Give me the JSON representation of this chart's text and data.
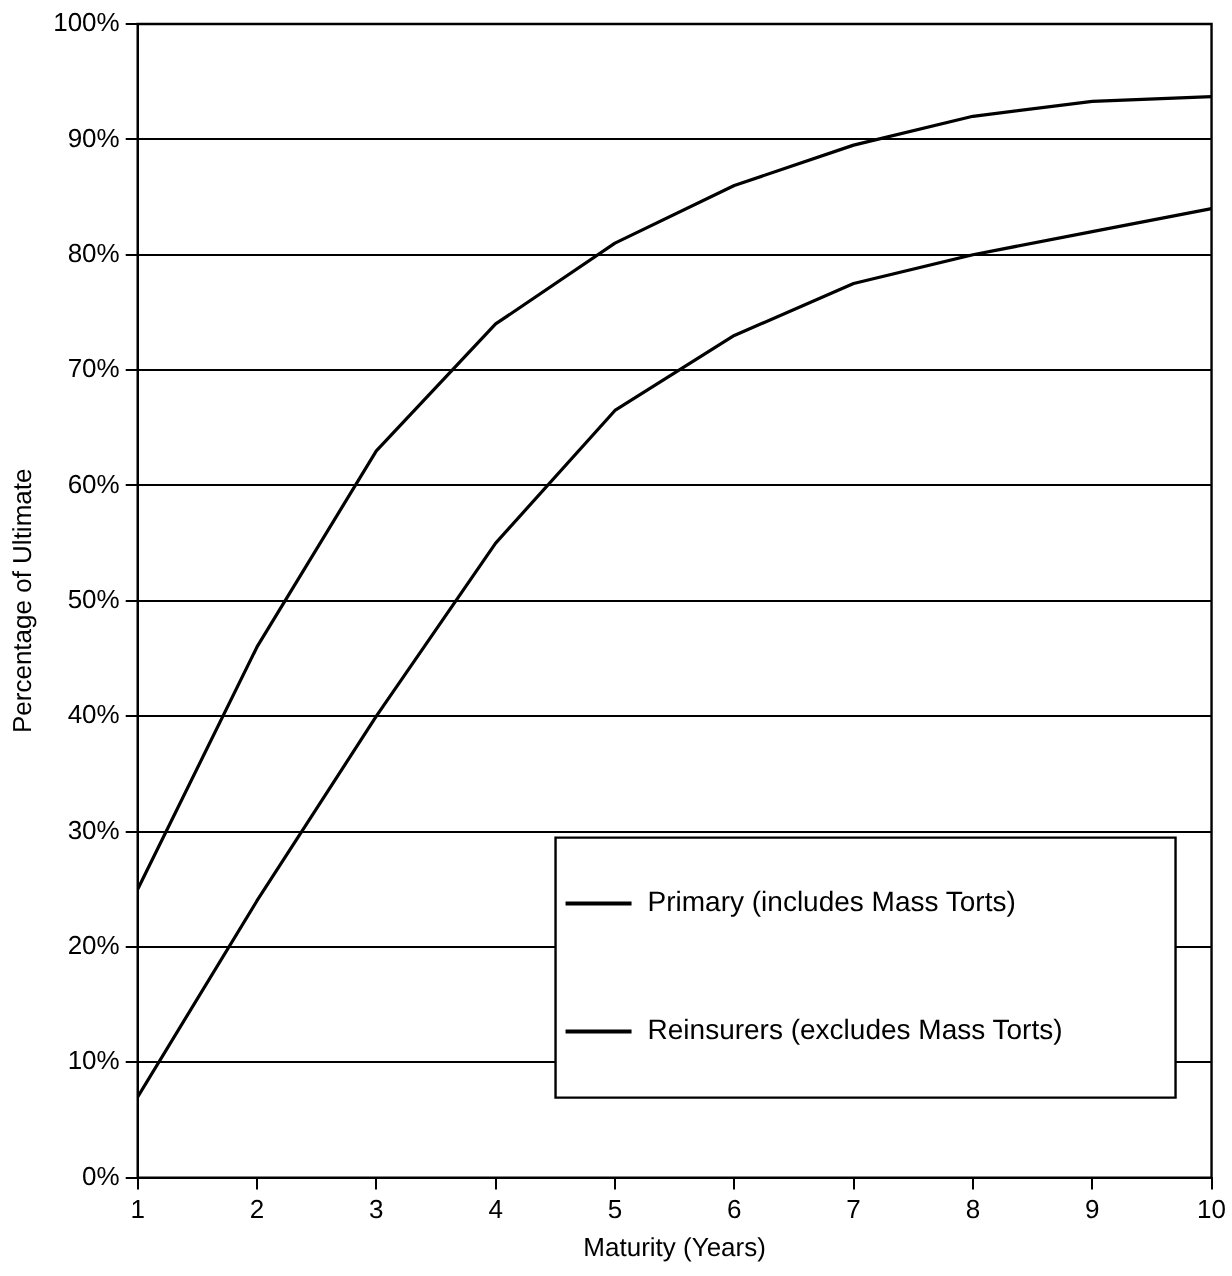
{
  "chart_data": {
    "type": "line",
    "xlabel": "Maturity (Years)",
    "ylabel": "Percentage of Ultimate",
    "x": [
      1,
      2,
      3,
      4,
      5,
      6,
      7,
      8,
      9,
      10
    ],
    "series": [
      {
        "name": "Primary (includes Mass Torts)",
        "color": "#000000",
        "values": [
          25,
          46,
          63,
          74,
          81,
          86,
          89.5,
          92,
          93.3,
          93.7
        ]
      },
      {
        "name": "Reinsurers (excludes Mass Torts)",
        "color": "#000000",
        "values": [
          7,
          24,
          40,
          55,
          66.5,
          73,
          77.5,
          80,
          82,
          84
        ]
      }
    ],
    "xlim": [
      1,
      10
    ],
    "xticks": [
      1,
      2,
      3,
      4,
      5,
      6,
      7,
      8,
      9,
      10
    ],
    "ylim": [
      0,
      100
    ],
    "yticks": [
      {
        "value": 0,
        "label": "0%"
      },
      {
        "value": 10,
        "label": "10%"
      },
      {
        "value": 20,
        "label": "20%"
      },
      {
        "value": 30,
        "label": "30%"
      },
      {
        "value": 40,
        "label": "40%"
      },
      {
        "value": 50,
        "label": "50%"
      },
      {
        "value": 60,
        "label": "60%"
      },
      {
        "value": 70,
        "label": "70%"
      },
      {
        "value": 80,
        "label": "80%"
      },
      {
        "value": 90,
        "label": "90%"
      },
      {
        "value": 100,
        "label": "100%"
      }
    ],
    "grid": "y",
    "legend": "bottom right",
    "marker": "none",
    "line_style": "solid"
  }
}
